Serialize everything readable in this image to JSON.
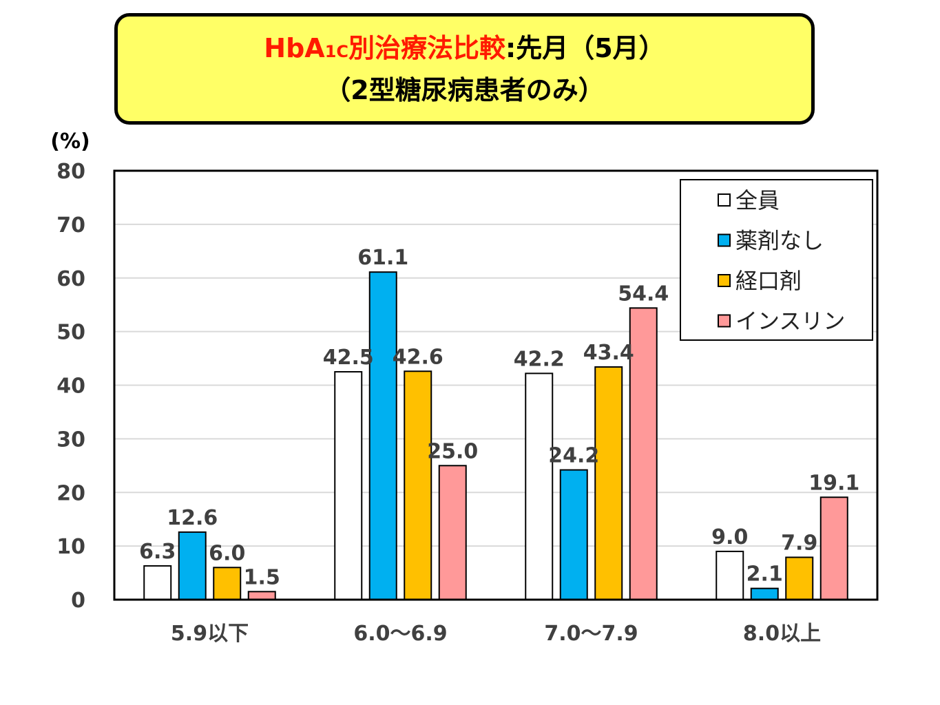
{
  "title": {
    "part1": "HbA",
    "part1_sub": "1C",
    "part2": "別治療法比較",
    "part3": ":先月（5月）",
    "line2": "（2型糖尿病患者のみ）"
  },
  "chart_data": {
    "type": "bar",
    "unit_label": "(%)",
    "ylim": [
      0,
      80
    ],
    "yticks": [
      0,
      10,
      20,
      30,
      40,
      50,
      60,
      70,
      80
    ],
    "grid": true,
    "legend_position": "top-right",
    "categories": [
      "5.9以下",
      "6.0～6.9",
      "7.0～7.9",
      "8.0以上"
    ],
    "series": [
      {
        "name": "全員",
        "color": "#ffffff",
        "values": [
          6.3,
          42.5,
          42.2,
          9.0
        ]
      },
      {
        "name": "薬剤なし",
        "color": "#00b0f0",
        "values": [
          12.6,
          61.1,
          24.2,
          2.1
        ]
      },
      {
        "name": "経口剤",
        "color": "#ffc000",
        "values": [
          6.0,
          42.6,
          43.4,
          7.9
        ]
      },
      {
        "name": "インスリン",
        "color": "#ff9999",
        "values": [
          1.5,
          25.0,
          54.4,
          19.1
        ]
      }
    ]
  }
}
